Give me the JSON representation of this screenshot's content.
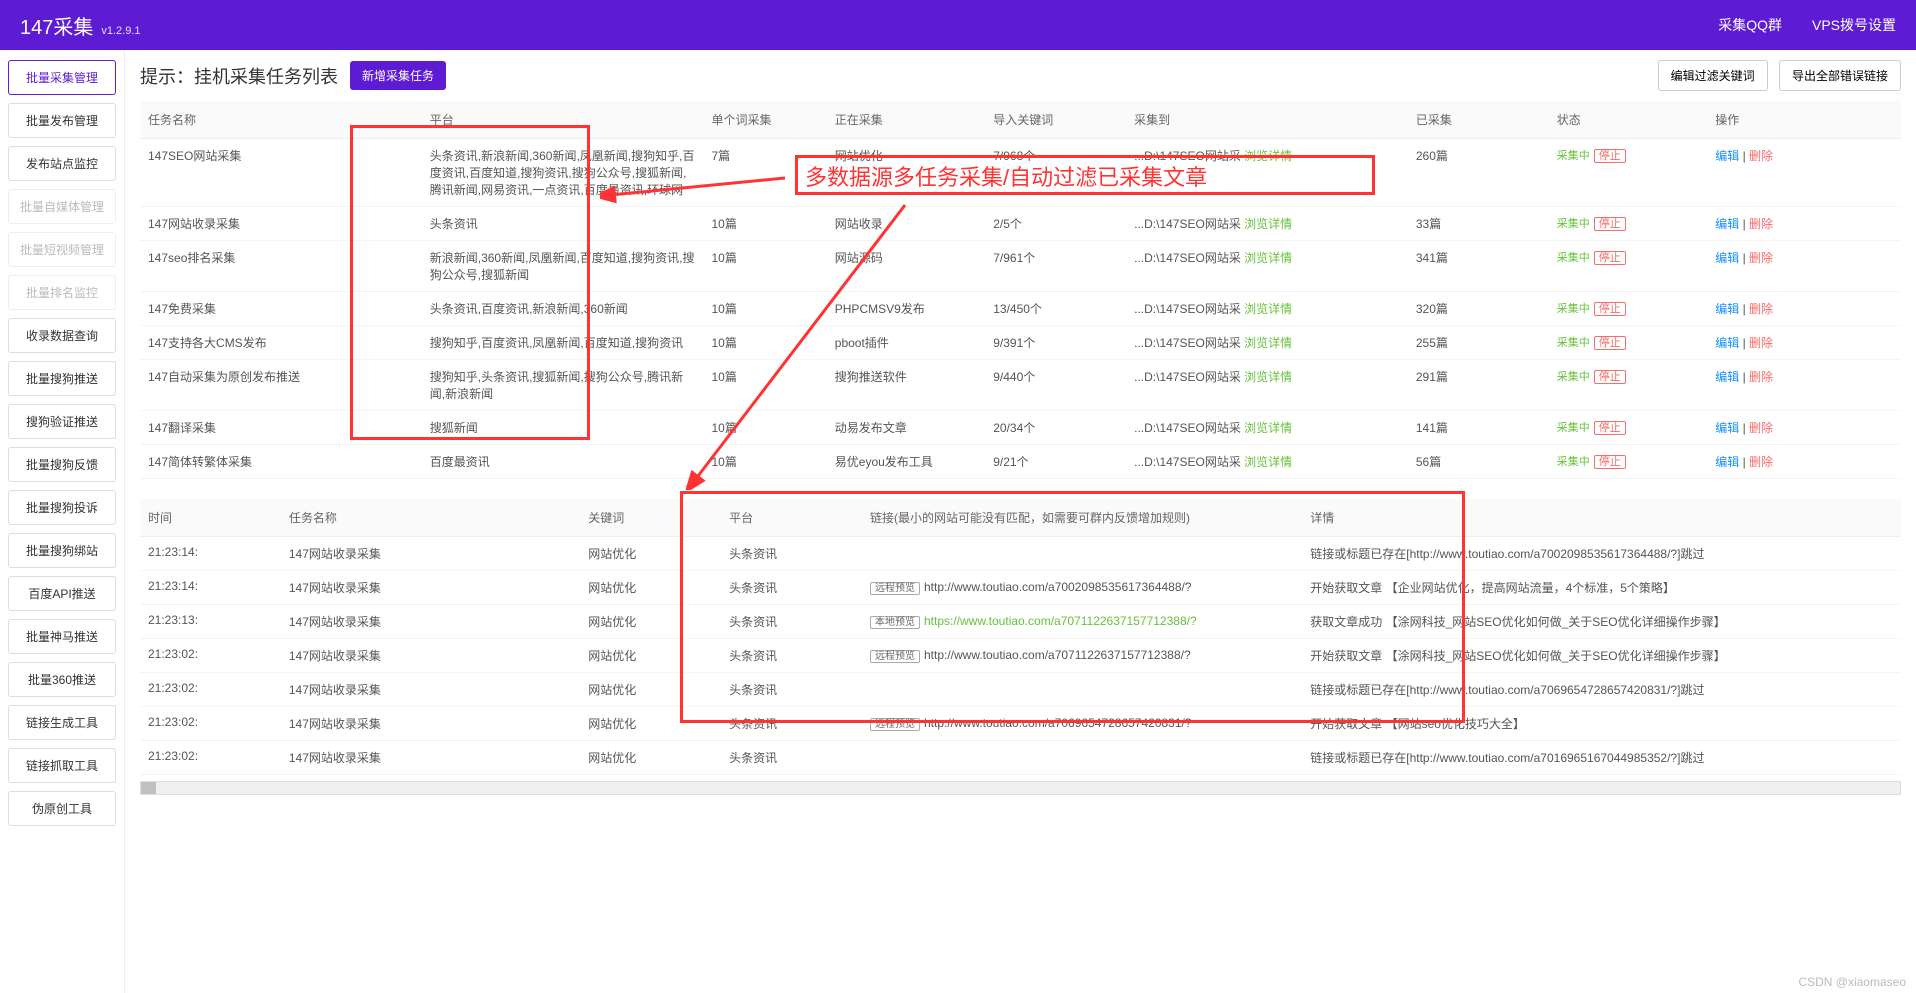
{
  "header": {
    "app_title": "147采集",
    "version": "v1.2.9.1",
    "link_qq": "采集QQ群",
    "link_vps": "VPS拨号设置"
  },
  "sidebar": {
    "items": [
      {
        "label": "批量采集管理",
        "state": "active"
      },
      {
        "label": "批量发布管理",
        "state": ""
      },
      {
        "label": "发布站点监控",
        "state": ""
      },
      {
        "label": "批量自媒体管理",
        "state": "disabled"
      },
      {
        "label": "批量短视频管理",
        "state": "disabled"
      },
      {
        "label": "批量排名监控",
        "state": "disabled"
      },
      {
        "label": "收录数据查询",
        "state": ""
      },
      {
        "label": "批量搜狗推送",
        "state": ""
      },
      {
        "label": "搜狗验证推送",
        "state": ""
      },
      {
        "label": "批量搜狗反馈",
        "state": ""
      },
      {
        "label": "批量搜狗投诉",
        "state": ""
      },
      {
        "label": "批量搜狗绑站",
        "state": ""
      },
      {
        "label": "百度API推送",
        "state": ""
      },
      {
        "label": "批量神马推送",
        "state": ""
      },
      {
        "label": "批量360推送",
        "state": ""
      },
      {
        "label": "链接生成工具",
        "state": ""
      },
      {
        "label": "链接抓取工具",
        "state": ""
      },
      {
        "label": "伪原创工具",
        "state": ""
      }
    ]
  },
  "panel": {
    "title": "提示：挂机采集任务列表",
    "btn_new": "新增采集任务",
    "btn_filter": "编辑过滤关键词",
    "btn_export": "导出全部错误链接"
  },
  "task_table": {
    "cols": [
      "任务名称",
      "平台",
      "单个词采集",
      "正在采集",
      "导入关键词",
      "采集到",
      "已采集",
      "状态",
      "操作"
    ],
    "status_text": "采集中",
    "stop_text": "停止",
    "browse_text": "浏览详情",
    "edit_text": "编辑",
    "del_text": "删除",
    "path_prefix": "...D:\\147SEO网站采",
    "rows": [
      {
        "name": "147SEO网站采集",
        "platform": "头条资讯,新浪新闻,360新闻,凤凰新闻,搜狗知乎,百度资讯,百度知道,搜狗资讯,搜狗公众号,搜狐新闻,腾讯新闻,网易资讯,一点资讯,百度最资讯,环球网",
        "per": "7篇",
        "now": "网站优化",
        "kw": "7/968个",
        "count": "260篇"
      },
      {
        "name": "147网站收录采集",
        "platform": "头条资讯",
        "per": "10篇",
        "now": "网站收录",
        "kw": "2/5个",
        "count": "33篇"
      },
      {
        "name": "147seo排名采集",
        "platform": "新浪新闻,360新闻,凤凰新闻,百度知道,搜狗资讯,搜狗公众号,搜狐新闻",
        "per": "10篇",
        "now": "网站源码",
        "kw": "7/961个",
        "count": "341篇"
      },
      {
        "name": "147免费采集",
        "platform": "头条资讯,百度资讯,新浪新闻,360新闻",
        "per": "10篇",
        "now": "PHPCMSV9发布",
        "kw": "13/450个",
        "count": "320篇"
      },
      {
        "name": "147支持各大CMS发布",
        "platform": "搜狗知乎,百度资讯,凤凰新闻,百度知道,搜狗资讯",
        "per": "10篇",
        "now": "pboot插件",
        "kw": "9/391个",
        "count": "255篇"
      },
      {
        "name": "147自动采集为原创发布推送",
        "platform": "搜狗知乎,头条资讯,搜狐新闻,搜狗公众号,腾讯新闻,新浪新闻",
        "per": "10篇",
        "now": "搜狗推送软件",
        "kw": "9/440个",
        "count": "291篇"
      },
      {
        "name": "147翻译采集",
        "platform": "搜狐新闻",
        "per": "10篇",
        "now": "动易发布文章",
        "kw": "20/34个",
        "count": "141篇"
      },
      {
        "name": "147简体转繁体采集",
        "platform": "百度最资讯",
        "per": "10篇",
        "now": "易优eyou发布工具",
        "kw": "9/21个",
        "count": "56篇"
      }
    ]
  },
  "log_table": {
    "cols": [
      "时间",
      "任务名称",
      "关键词",
      "平台",
      "链接(最小的网站可能没有匹配，如需要可群内反馈增加规则)",
      "详情"
    ],
    "rows": [
      {
        "time": "21:23:14:",
        "task": "147网站收录采集",
        "kw": "网站优化",
        "plat": "头条资讯",
        "link": "",
        "detail": "链接或标题已存在[http://www.toutiao.com/a7002098535617364488/?]跳过"
      },
      {
        "time": "21:23:14:",
        "task": "147网站收录采集",
        "kw": "网站优化",
        "plat": "头条资讯",
        "btn": "远程预览",
        "link": "http://www.toutiao.com/a7002098535617364488/?",
        "detail": "开始获取文章 【企业网站优化，提高网站流量，4个标准，5个策略】"
      },
      {
        "time": "21:23:13:",
        "task": "147网站收录采集",
        "kw": "网站优化",
        "plat": "头条资讯",
        "btn": "本地预览",
        "link": "https://www.toutiao.com/a7071122637157712388/?",
        "green": true,
        "detail": "获取文章成功 【涂网科技_网站SEO优化如何做_关于SEO优化详细操作步骤】"
      },
      {
        "time": "21:23:02:",
        "task": "147网站收录采集",
        "kw": "网站优化",
        "plat": "头条资讯",
        "btn": "远程预览",
        "link": "http://www.toutiao.com/a7071122637157712388/?",
        "detail": "开始获取文章 【涂网科技_网站SEO优化如何做_关于SEO优化详细操作步骤】"
      },
      {
        "time": "21:23:02:",
        "task": "147网站收录采集",
        "kw": "网站优化",
        "plat": "头条资讯",
        "link": "",
        "detail": "链接或标题已存在[http://www.toutiao.com/a7069654728657420831/?]跳过"
      },
      {
        "time": "21:23:02:",
        "task": "147网站收录采集",
        "kw": "网站优化",
        "plat": "头条资讯",
        "btn": "远程预览",
        "link": "http://www.toutiao.com/a7069654728657420831/?",
        "detail": "开始获取文章 【网站seo优化技巧大全】"
      },
      {
        "time": "21:23:02:",
        "task": "147网站收录采集",
        "kw": "网站优化",
        "plat": "头条资讯",
        "link": "",
        "detail": "链接或标题已存在[http://www.toutiao.com/a7016965167044985352/?]跳过"
      }
    ]
  },
  "annotation": {
    "text": "多数据源多任务采集/自动过滤已采集文章"
  },
  "watermark": "CSDN @xiaomaseo"
}
